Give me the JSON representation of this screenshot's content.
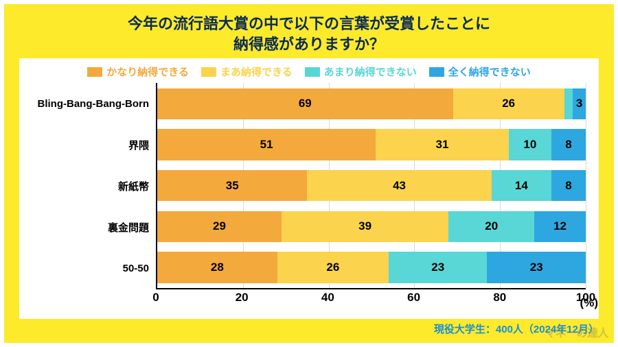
{
  "background_color": "#fcea2b",
  "title": {
    "line1": "今年の流行語大賞の中で以下の言葉が受賞したことに",
    "line2": "納得感がありますか？",
    "color": "#0a2a52",
    "fontsize": 22
  },
  "chart": {
    "type": "stacked-horizontal-bar",
    "xlim": [
      0,
      100
    ],
    "xtick_step": 20,
    "xticks": [
      "0",
      "20",
      "40",
      "60",
      "80",
      "100"
    ],
    "x_unit": "(%)",
    "grid_color": "#d8d8d8",
    "label_fontsize": 15,
    "value_fontsize": 17,
    "tick_fontsize": 17,
    "bar_fill_ratio": 0.76,
    "series": [
      {
        "label": "かなり納得できる",
        "color": "#f3a93c"
      },
      {
        "label": "まあ納得できる",
        "color": "#fcd34d"
      },
      {
        "label": "あまり納得できない",
        "color": "#59d6d6"
      },
      {
        "label": "全く納得できない",
        "color": "#2ea7e0"
      }
    ],
    "legend_fontsize": 15,
    "categories": [
      {
        "label": "Bling-Bang-Bang-Born",
        "values": [
          69,
          26,
          2,
          3
        ],
        "show": [
          "69",
          "26",
          "",
          "3"
        ]
      },
      {
        "label": "界隈",
        "values": [
          51,
          31,
          10,
          8
        ],
        "show": [
          "51",
          "31",
          "10",
          "8"
        ]
      },
      {
        "label": "新紙幣",
        "values": [
          35,
          43,
          14,
          8
        ],
        "show": [
          "35",
          "43",
          "14",
          "8"
        ]
      },
      {
        "label": "裏金問題",
        "values": [
          29,
          39,
          20,
          12
        ],
        "show": [
          "29",
          "39",
          "20",
          "12"
        ]
      },
      {
        "label": "50-50",
        "values": [
          28,
          26,
          23,
          23
        ],
        "show": [
          "28",
          "26",
          "23",
          "23"
        ]
      }
    ]
  },
  "footnote": {
    "text": "現役大学生：400人（2024年12月）",
    "color": "#1b8fd6",
    "fontsize": 15
  },
  "watermark": {
    "text": "マネーの達人",
    "color": "#7a7a5d",
    "fontsize": 16
  }
}
